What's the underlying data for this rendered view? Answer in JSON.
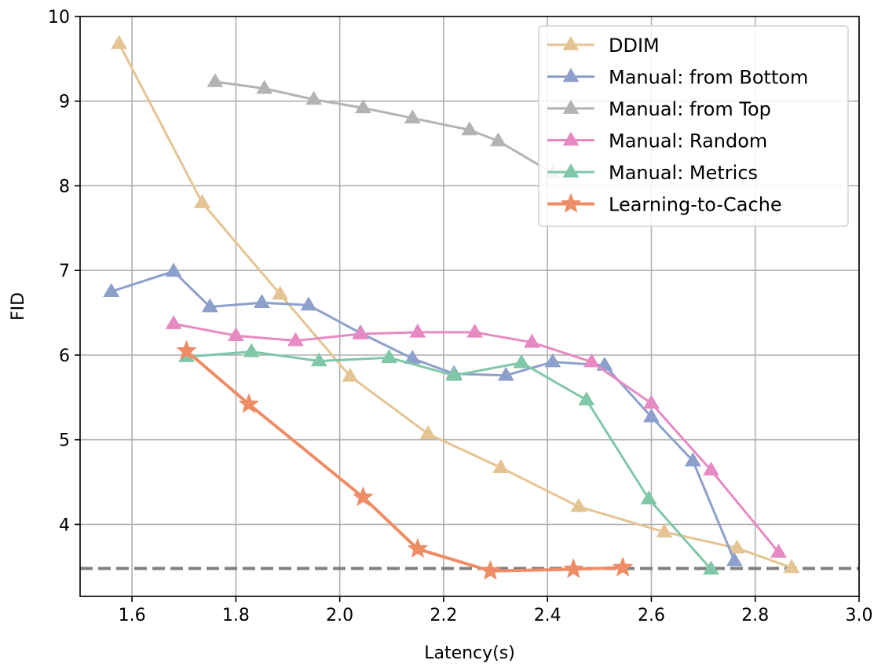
{
  "chart_data": {
    "type": "line",
    "title": "",
    "xlabel": "Latency(s)",
    "ylabel": "FID",
    "xlim": [
      1.5,
      3.0
    ],
    "ylim": [
      3.15,
      10.0
    ],
    "xticks": [
      1.6,
      1.8,
      2.0,
      2.2,
      2.4,
      2.6,
      2.8,
      3.0
    ],
    "xtick_labels": [
      "1.6",
      "1.8",
      "2.0",
      "2.2",
      "2.4",
      "2.6",
      "2.8",
      "3.0"
    ],
    "yticks": [
      4,
      5,
      6,
      7,
      8,
      9,
      10
    ],
    "ytick_labels": [
      "4",
      "5",
      "6",
      "7",
      "8",
      "9",
      "10"
    ],
    "grid": true,
    "legend_position": "top-right",
    "reference_line": {
      "y": 3.48,
      "style": "dashed",
      "color": "#808080"
    },
    "series": [
      {
        "name": "DDIM",
        "color": "#e5c494",
        "marker": "triangle",
        "width": 3,
        "points": [
          [
            1.575,
            9.68
          ],
          [
            1.735,
            7.8
          ],
          [
            1.885,
            6.72
          ],
          [
            2.02,
            5.75
          ],
          [
            2.17,
            5.07
          ],
          [
            2.31,
            4.67
          ],
          [
            2.46,
            4.21
          ],
          [
            2.625,
            3.91
          ],
          [
            2.765,
            3.72
          ],
          [
            2.87,
            3.49
          ]
        ]
      },
      {
        "name": "Manual: from Bottom",
        "color": "#8da0cb",
        "marker": "triangle",
        "width": 3,
        "points": [
          [
            1.56,
            6.75
          ],
          [
            1.68,
            6.99
          ],
          [
            1.75,
            6.57
          ],
          [
            1.85,
            6.62
          ],
          [
            1.94,
            6.59
          ],
          [
            2.04,
            6.26
          ],
          [
            2.14,
            5.96
          ],
          [
            2.22,
            5.78
          ],
          [
            2.32,
            5.76
          ],
          [
            2.41,
            5.92
          ],
          [
            2.51,
            5.88
          ],
          [
            2.6,
            5.27
          ],
          [
            2.68,
            4.75
          ],
          [
            2.76,
            3.57
          ]
        ]
      },
      {
        "name": "Manual: from Top",
        "color": "#b3b3b3",
        "marker": "triangle",
        "width": 3,
        "points": [
          [
            1.76,
            9.23
          ],
          [
            1.855,
            9.15
          ],
          [
            1.95,
            9.02
          ],
          [
            2.045,
            8.92
          ],
          [
            2.14,
            8.8
          ],
          [
            2.25,
            8.66
          ],
          [
            2.305,
            8.53
          ],
          [
            2.41,
            8.15
          ]
        ]
      },
      {
        "name": "Manual: Random",
        "color": "#e78ac3",
        "marker": "triangle",
        "width": 3,
        "points": [
          [
            1.68,
            6.37
          ],
          [
            1.8,
            6.23
          ],
          [
            1.915,
            6.17
          ],
          [
            2.04,
            6.25
          ],
          [
            2.15,
            6.27
          ],
          [
            2.26,
            6.27
          ],
          [
            2.37,
            6.15
          ],
          [
            2.485,
            5.92
          ],
          [
            2.6,
            5.43
          ],
          [
            2.715,
            4.64
          ],
          [
            2.845,
            3.67
          ]
        ]
      },
      {
        "name": "Manual: Metrics",
        "color": "#80c7a8",
        "marker": "triangle",
        "width": 3,
        "points": [
          [
            1.705,
            5.98
          ],
          [
            1.83,
            6.04
          ],
          [
            1.96,
            5.93
          ],
          [
            2.095,
            5.97
          ],
          [
            2.22,
            5.76
          ],
          [
            2.35,
            5.91
          ],
          [
            2.475,
            5.47
          ],
          [
            2.595,
            4.3
          ],
          [
            2.715,
            3.47
          ]
        ]
      },
      {
        "name": "Learning-to-Cache",
        "color": "#ee8c65",
        "marker": "star",
        "width": 4,
        "points": [
          [
            1.705,
            6.05
          ],
          [
            1.825,
            5.42
          ],
          [
            2.045,
            4.32
          ],
          [
            2.15,
            3.71
          ],
          [
            2.29,
            3.45
          ],
          [
            2.45,
            3.47
          ],
          [
            2.545,
            3.49
          ]
        ]
      }
    ]
  }
}
